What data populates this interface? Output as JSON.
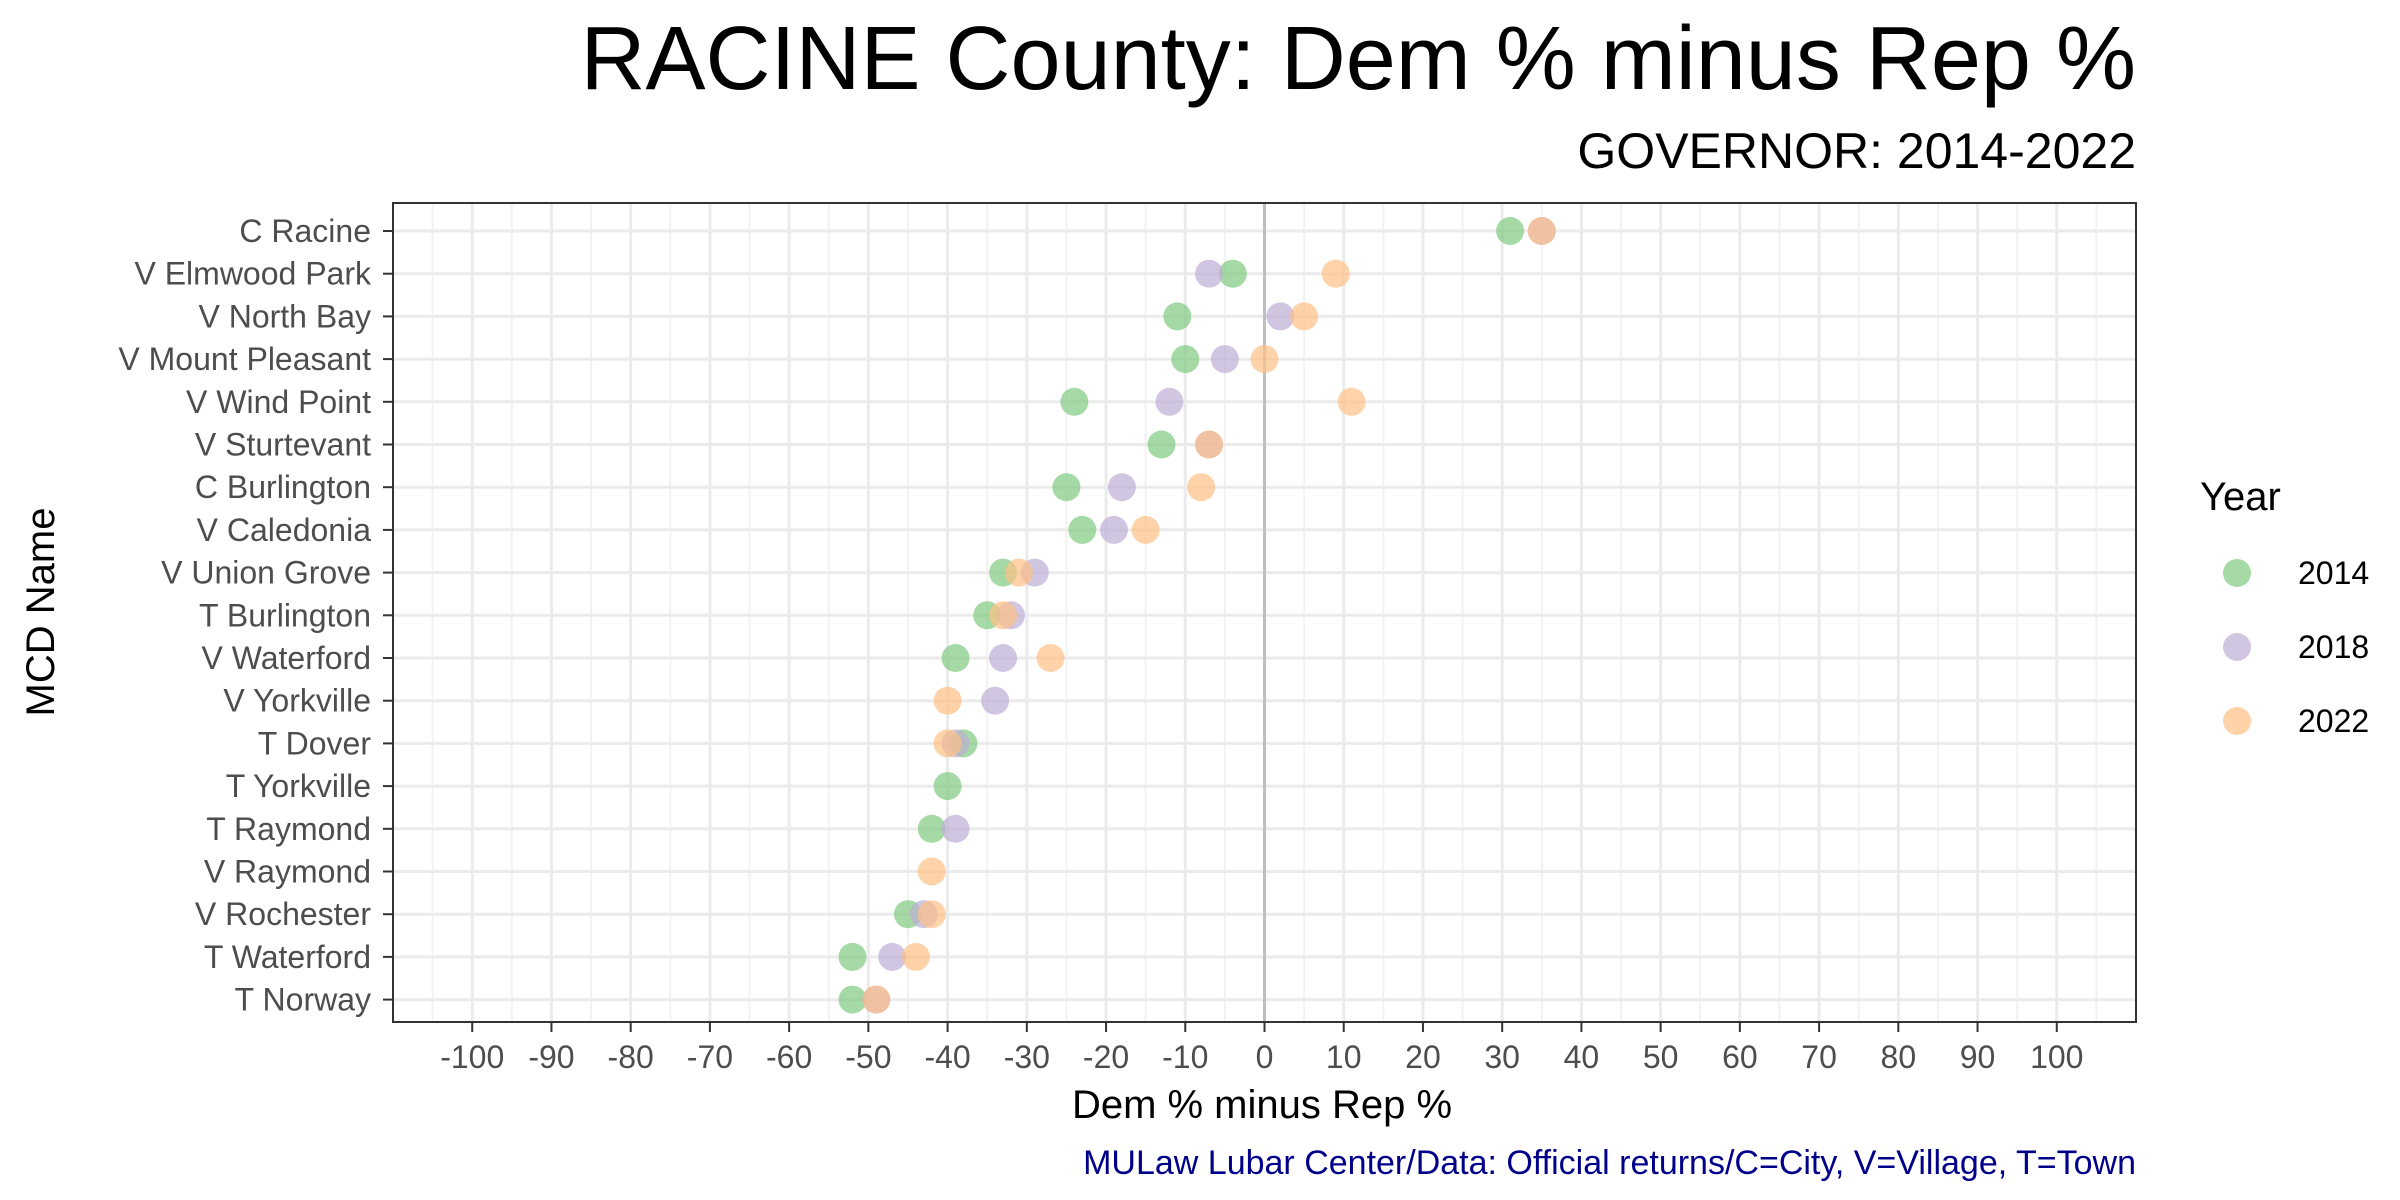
{
  "chart_data": {
    "type": "scatter",
    "title": "RACINE County: Dem % minus Rep %",
    "subtitle": "GOVERNOR: 2014-2022",
    "xlabel": "Dem % minus Rep %",
    "ylabel": "MCD Name",
    "xlim": [
      -110,
      110
    ],
    "xticks": [
      -100,
      -90,
      -80,
      -70,
      -60,
      -50,
      -40,
      -30,
      -20,
      -10,
      0,
      10,
      20,
      30,
      40,
      50,
      60,
      70,
      80,
      90,
      100
    ],
    "grid": true,
    "legend_title": "Year",
    "legend_position": "right",
    "caption": "MULaw Lubar Center/Data: Official returns/C=City, V=Village, T=Town",
    "categories": [
      "C Racine",
      "V Elmwood Park",
      "V North Bay",
      "V Mount Pleasant",
      "V Wind Point",
      "V Sturtevant",
      "C Burlington",
      "V Caledonia",
      "V Union Grove",
      "T Burlington",
      "V Waterford",
      "V Yorkville",
      "T Dover",
      "T Yorkville",
      "T Raymond",
      "V Raymond",
      "V Rochester",
      "T Waterford",
      "T Norway"
    ],
    "series": [
      {
        "name": "2014",
        "color": "#7fc97f",
        "values": [
          31,
          -4,
          -11,
          -10,
          -24,
          -13,
          -25,
          -23,
          -33,
          -35,
          -39,
          null,
          -38,
          -40,
          -42,
          null,
          -45,
          -52,
          -52
        ]
      },
      {
        "name": "2018",
        "color": "#beaed4",
        "values": [
          35,
          -7,
          2,
          -5,
          -12,
          -7,
          -18,
          -19,
          -29,
          -32,
          -33,
          -34,
          -39,
          null,
          -39,
          null,
          -43,
          -47,
          -49
        ]
      },
      {
        "name": "2022",
        "color": "#fdc086",
        "values": [
          35,
          9,
          5,
          0,
          11,
          -7,
          -8,
          -15,
          -31,
          -33,
          -27,
          -40,
          -40,
          null,
          null,
          -42,
          -42,
          -44,
          -49
        ]
      }
    ]
  }
}
